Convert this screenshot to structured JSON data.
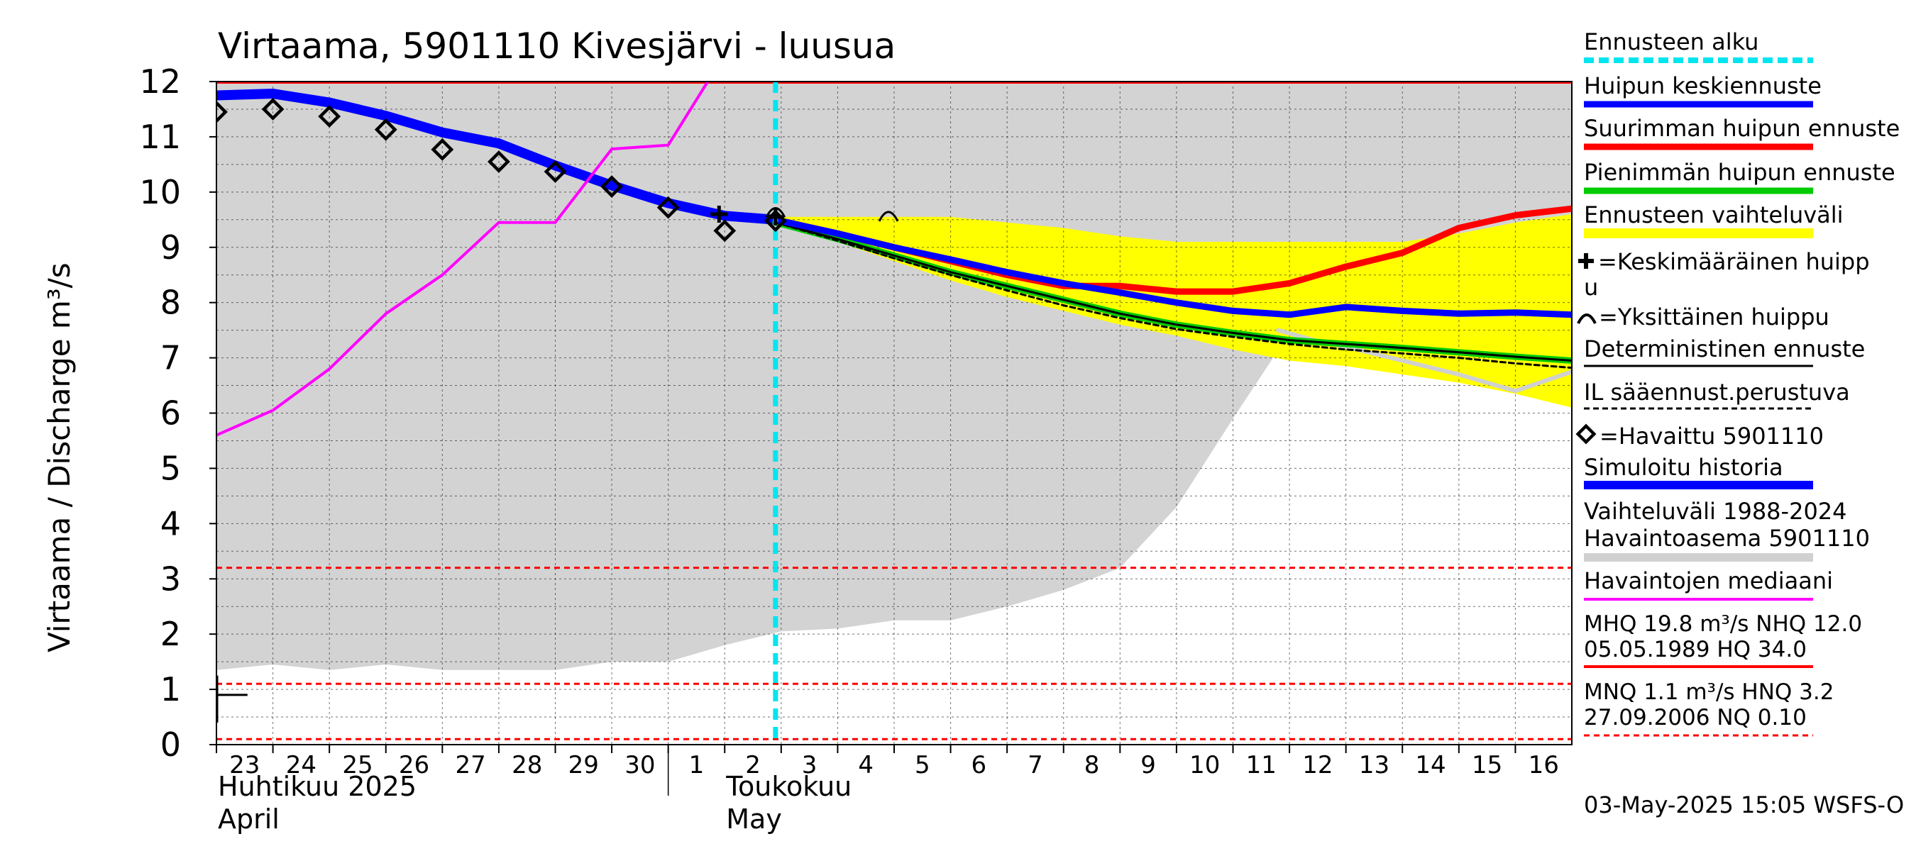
{
  "chart_data": {
    "type": "line",
    "title": "Virtaama, 5901110 Kivesjärvi - luusua",
    "ylabel": "Virtaama / Discharge    m³/s",
    "ylim": [
      0,
      12
    ],
    "yticks": [
      0,
      1,
      2,
      3,
      4,
      5,
      6,
      7,
      8,
      9,
      10,
      11,
      12
    ],
    "x_range": [
      23,
      47
    ],
    "x_tick_labels": [
      "23",
      "24",
      "25",
      "26",
      "27",
      "28",
      "29",
      "30",
      "1",
      "2",
      "3",
      "4",
      "5",
      "6",
      "7",
      "8",
      "9",
      "10",
      "11",
      "12",
      "13",
      "14",
      "15",
      "16"
    ],
    "month_labels": [
      {
        "x": 23,
        "fi": "Huhtikuu  2025",
        "en": "April"
      },
      {
        "x": 32,
        "fi": "Toukokuu",
        "en": "May"
      }
    ],
    "month_divider_x": 31,
    "forecast_start_x": 32.9,
    "hlines": [
      {
        "y": 11.98,
        "color": "#ff0000",
        "style": "solid"
      },
      {
        "y": 3.2,
        "color": "#ff0000",
        "style": "dashed"
      },
      {
        "y": 1.1,
        "color": "#ff0000",
        "style": "dashed"
      },
      {
        "y": 0.1,
        "color": "#ff0000",
        "style": "dashed"
      }
    ],
    "history_band": {
      "x": [
        23,
        24,
        25,
        26,
        27,
        28,
        29,
        30,
        31,
        32,
        33,
        34,
        35,
        36,
        37,
        38,
        39,
        40,
        41,
        42,
        43,
        44,
        45,
        46,
        47
      ],
      "lower": [
        1.35,
        1.45,
        1.35,
        1.45,
        1.35,
        1.35,
        1.35,
        1.5,
        1.5,
        1.8,
        2.05,
        2.1,
        2.25,
        2.25,
        2.5,
        2.8,
        3.2,
        4.3,
        5.9,
        7.45,
        6.9,
        6.9,
        6.9,
        6.9,
        6.9
      ],
      "upper": 12
    },
    "forecast_band": {
      "x": [
        32.9,
        33.5,
        34,
        35,
        36,
        37,
        38,
        39,
        40,
        41,
        42,
        43,
        44,
        45,
        46,
        47
      ],
      "lower": [
        9.4,
        9.25,
        9.1,
        8.75,
        8.4,
        8.1,
        7.85,
        7.6,
        7.4,
        7.15,
        6.95,
        6.85,
        6.7,
        6.55,
        6.35,
        6.1
      ],
      "upper": [
        9.55,
        9.55,
        9.55,
        9.55,
        9.55,
        9.45,
        9.35,
        9.2,
        9.1,
        9.1,
        9.1,
        9.1,
        9.1,
        9.25,
        9.45,
        9.6
      ]
    },
    "series": [
      {
        "name": "Simuloitu historia",
        "color": "#0000ff",
        "width": 14,
        "x": [
          23,
          24,
          25,
          26,
          27,
          28,
          29,
          30,
          31,
          32,
          32.9
        ],
        "y": [
          11.75,
          11.78,
          11.62,
          11.38,
          11.08,
          10.88,
          10.48,
          10.12,
          9.8,
          9.57,
          9.5
        ]
      },
      {
        "name": "Havaintojen mediaani",
        "color": "#ff00ff",
        "width": 4,
        "x": [
          23,
          24,
          25,
          26,
          27,
          28,
          29,
          30,
          31,
          31.7
        ],
        "y": [
          5.6,
          6.05,
          6.8,
          7.8,
          8.5,
          9.45,
          9.45,
          10.78,
          10.85,
          12
        ]
      },
      {
        "name": "Vaihteluväli 1988-2024 (forecast member)",
        "color": "#d0d0d0",
        "width": 6,
        "x": [
          41.8,
          42.5,
          43,
          44,
          45,
          46,
          47
        ],
        "y": [
          7.5,
          7.3,
          7.2,
          6.95,
          6.7,
          6.4,
          6.75
        ]
      },
      {
        "name": "Suurimman huipun ennuste",
        "color": "#ff0000",
        "width": 9,
        "x": [
          32.9,
          34,
          35,
          36,
          37,
          38,
          39,
          40,
          41,
          42,
          43,
          44,
          45,
          46,
          47
        ],
        "y": [
          9.5,
          9.25,
          9.0,
          8.75,
          8.5,
          8.3,
          8.3,
          8.2,
          8.2,
          8.35,
          8.65,
          8.9,
          9.35,
          9.58,
          9.7
        ]
      },
      {
        "name": "Pienimmän huipun ennuste",
        "color": "#00cc00",
        "width": 9,
        "x": [
          32.9,
          34,
          35,
          36,
          37,
          38,
          39,
          40,
          41,
          42,
          43,
          44,
          45,
          46,
          47
        ],
        "y": [
          9.45,
          9.15,
          8.85,
          8.55,
          8.3,
          8.05,
          7.8,
          7.6,
          7.45,
          7.32,
          7.25,
          7.18,
          7.1,
          7.02,
          6.95
        ]
      },
      {
        "name": "Deterministinen ennuste",
        "color": "#000000",
        "width": 3,
        "x": [
          32.9,
          34,
          35,
          36,
          37,
          38,
          39,
          40,
          41,
          42,
          43,
          44,
          45,
          46,
          47
        ],
        "y": [
          9.45,
          9.15,
          8.85,
          8.55,
          8.3,
          8.05,
          7.8,
          7.6,
          7.45,
          7.32,
          7.25,
          7.18,
          7.1,
          7.02,
          6.95
        ]
      },
      {
        "name": "IL sääennust.perustuva",
        "color": "#000000",
        "width": 3,
        "dashed": true,
        "x": [
          32.9,
          34,
          35,
          36,
          37,
          38,
          39,
          40,
          41,
          42,
          43,
          44,
          45,
          46,
          47
        ],
        "y": [
          9.45,
          9.12,
          8.8,
          8.5,
          8.22,
          7.95,
          7.72,
          7.52,
          7.38,
          7.25,
          7.15,
          7.08,
          7.0,
          6.9,
          6.82
        ]
      },
      {
        "name": "Huipun keskiennuste",
        "color": "#0000ff",
        "width": 9,
        "x": [
          32.9,
          34,
          35,
          36,
          37,
          38,
          39,
          40,
          41,
          42,
          43,
          44,
          45,
          46,
          47
        ],
        "y": [
          9.5,
          9.25,
          9.0,
          8.78,
          8.55,
          8.35,
          8.18,
          8.0,
          7.85,
          7.78,
          7.92,
          7.85,
          7.8,
          7.82,
          7.78
        ]
      }
    ],
    "observed": {
      "name": "Havaittu 5901110",
      "x": [
        23,
        24,
        25,
        26,
        27,
        28,
        29,
        30,
        31,
        32,
        32.9
      ],
      "y": [
        11.45,
        11.5,
        11.37,
        11.13,
        10.77,
        10.55,
        10.37,
        10.1,
        9.72,
        9.3,
        9.48
      ]
    },
    "mean_peak_markers": {
      "name": "Keskimääräinen huippu",
      "x": [
        31.9,
        32.9
      ],
      "y": [
        9.6,
        9.55
      ]
    },
    "single_peak_markers": {
      "name": "Yksittäinen huippu",
      "x": [
        32.9,
        34.9
      ],
      "y": [
        9.62,
        9.55
      ]
    },
    "mnq_tick": {
      "x_end": 23.55,
      "y": 0.9
    }
  },
  "legend": {
    "items": [
      {
        "label": "Ennusteen alku",
        "kind": "dashed",
        "color": "#00e5ee"
      },
      {
        "label": "Huipun keskiennuste",
        "kind": "line",
        "color": "#0000ff"
      },
      {
        "label": "Suurimman huipun ennuste",
        "kind": "line",
        "color": "#ff0000"
      },
      {
        "label": "Pienimmän huipun ennuste",
        "kind": "line",
        "color": "#00cc00"
      },
      {
        "label": "Ennusteen vaihteluväli",
        "kind": "band",
        "color": "#ffff00"
      }
    ],
    "mean_peak_line1": "=Keskimääräinen huipp",
    "mean_peak_line2": "u",
    "single_peak": "=Yksittäinen huippu",
    "deterministic": "Deterministinen ennuste",
    "il": "IL sääennust.perustuva",
    "observed": "=Havaittu 5901110",
    "simulated": "Simuloitu historia",
    "range_line1": "Vaihteluväli 1988-2024",
    "range_line2": " Havaintoasema 5901110",
    "median": "Havaintojen mediaani",
    "mhq_line1": "MHQ 19.8 m³/s NHQ 12.0",
    "mhq_line2": "05.05.1989 HQ 34.0",
    "mnq_line1": "MNQ  1.1 m³/s HNQ  3.2",
    "mnq_line2": "27.09.2006 NQ 0.10"
  },
  "footer": "03-May-2025 15:05 WSFS-O"
}
